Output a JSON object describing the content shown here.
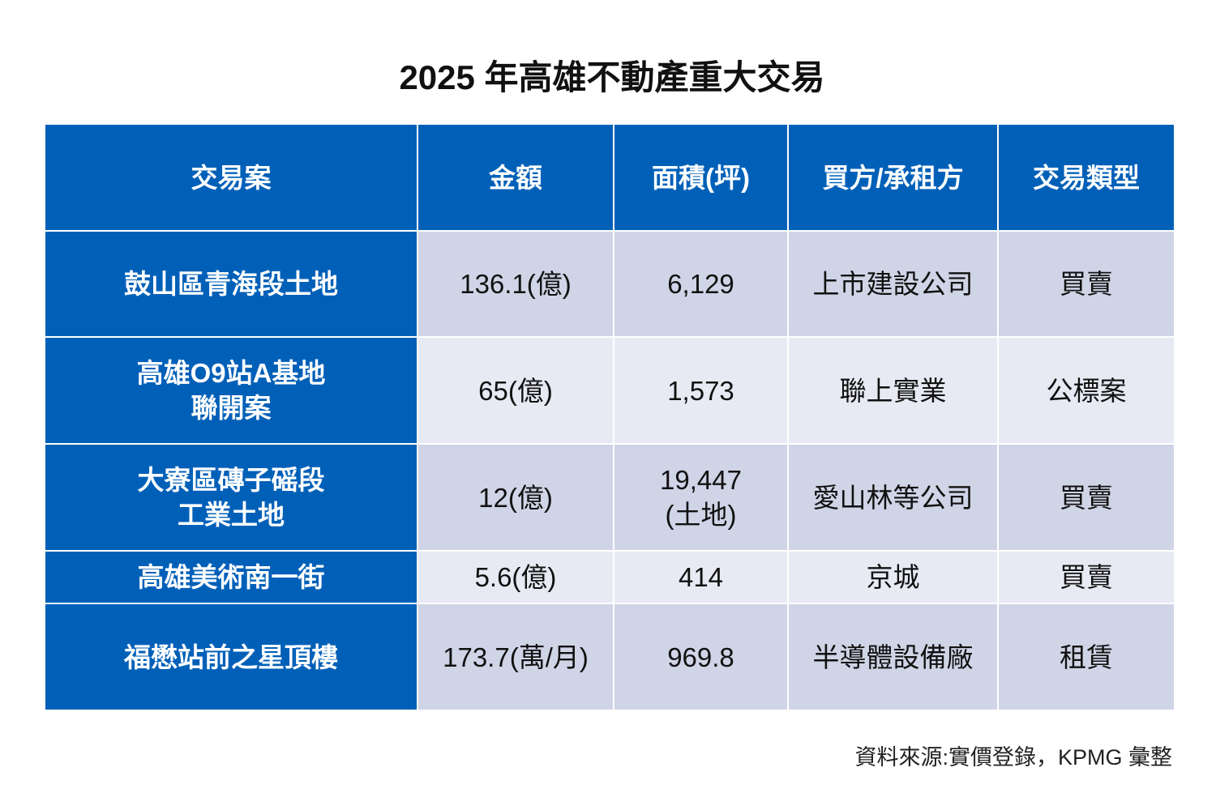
{
  "title": "2025 年高雄不動產重大交易",
  "table": {
    "header": [
      "交易案",
      "金額",
      "面積(坪)",
      "買方/承租方",
      "交易類型"
    ],
    "rows": [
      [
        "鼓山區青海段土地",
        "136.1(億)",
        "6,129",
        "上市建設公司",
        "買賣"
      ],
      [
        "高雄O9站A基地\n聯開案",
        "65(億)",
        "1,573",
        "聯上實業",
        "公標案"
      ],
      [
        "大寮區磚子磘段\n工業土地",
        "12(億)",
        "19,447\n(土地)",
        "愛山林等公司",
        "買賣"
      ],
      [
        "高雄美術南一街",
        "5.6(億)",
        "414",
        "京城",
        "買賣"
      ],
      [
        "福懋站前之星頂樓",
        "173.7(萬/月)",
        "969.8",
        "半導體設備廠",
        "租賃"
      ]
    ]
  },
  "source": "資料來源:實價登錄，KPMG 彙整"
}
